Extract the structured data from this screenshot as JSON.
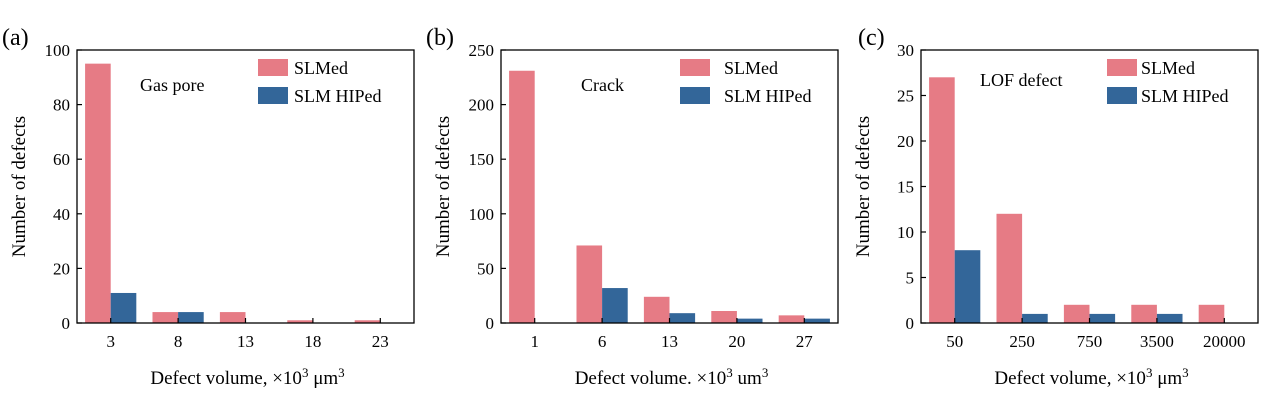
{
  "colors": {
    "slmed": "#e67b85",
    "slm_hiped": "#336699"
  },
  "chart_data": [
    {
      "type": "bar",
      "panel_label": "(a)",
      "annotation": "Gas pore",
      "categories": [
        "3",
        "8",
        "13",
        "18",
        "23"
      ],
      "series": [
        {
          "name": "SLMed",
          "values": [
            95,
            4,
            4,
            1,
            1
          ]
        },
        {
          "name": "SLM HIPed",
          "values": [
            11,
            4,
            0,
            0,
            0
          ]
        }
      ],
      "xlabel": "Defect volume, ×10",
      "xlabel_sup": "3",
      "xlabel_unit": " μm",
      "xlabel_unit_sup": "3",
      "ylabel": "Number of defects",
      "ylim": [
        0,
        100
      ],
      "yticks": [
        0,
        20,
        40,
        60,
        80,
        100
      ],
      "legend": "top-right"
    },
    {
      "type": "bar",
      "panel_label": "(b)",
      "annotation": "Crack",
      "categories": [
        "1",
        "6",
        "13",
        "20",
        "27"
      ],
      "series": [
        {
          "name": "SLMed",
          "values": [
            231,
            71,
            24,
            11,
            7
          ]
        },
        {
          "name": "SLM HIPed",
          "values": [
            0,
            32,
            9,
            4,
            4
          ]
        }
      ],
      "xlabel": "Defect volume. ×10",
      "xlabel_sup": "3",
      "xlabel_unit": " um",
      "xlabel_unit_sup": "3",
      "ylabel": "Number of defects",
      "ylim": [
        0,
        250
      ],
      "yticks": [
        0,
        50,
        100,
        150,
        200,
        250
      ],
      "legend": "top-right"
    },
    {
      "type": "bar",
      "panel_label": "(c)",
      "annotation": "LOF defect",
      "categories": [
        "50",
        "250",
        "750",
        "3500",
        "20000"
      ],
      "series": [
        {
          "name": "SLMed",
          "values": [
            27,
            12,
            2,
            2,
            2
          ]
        },
        {
          "name": "SLM HIPed",
          "values": [
            8,
            1,
            1,
            1,
            0
          ]
        }
      ],
      "xlabel": "Defect volume, ×10",
      "xlabel_sup": "3",
      "xlabel_unit": " μm",
      "xlabel_unit_sup": "3",
      "ylabel": "Number of defects",
      "ylim": [
        0,
        30
      ],
      "yticks": [
        0,
        5,
        10,
        15,
        20,
        25,
        30
      ],
      "legend": "top-right"
    }
  ]
}
